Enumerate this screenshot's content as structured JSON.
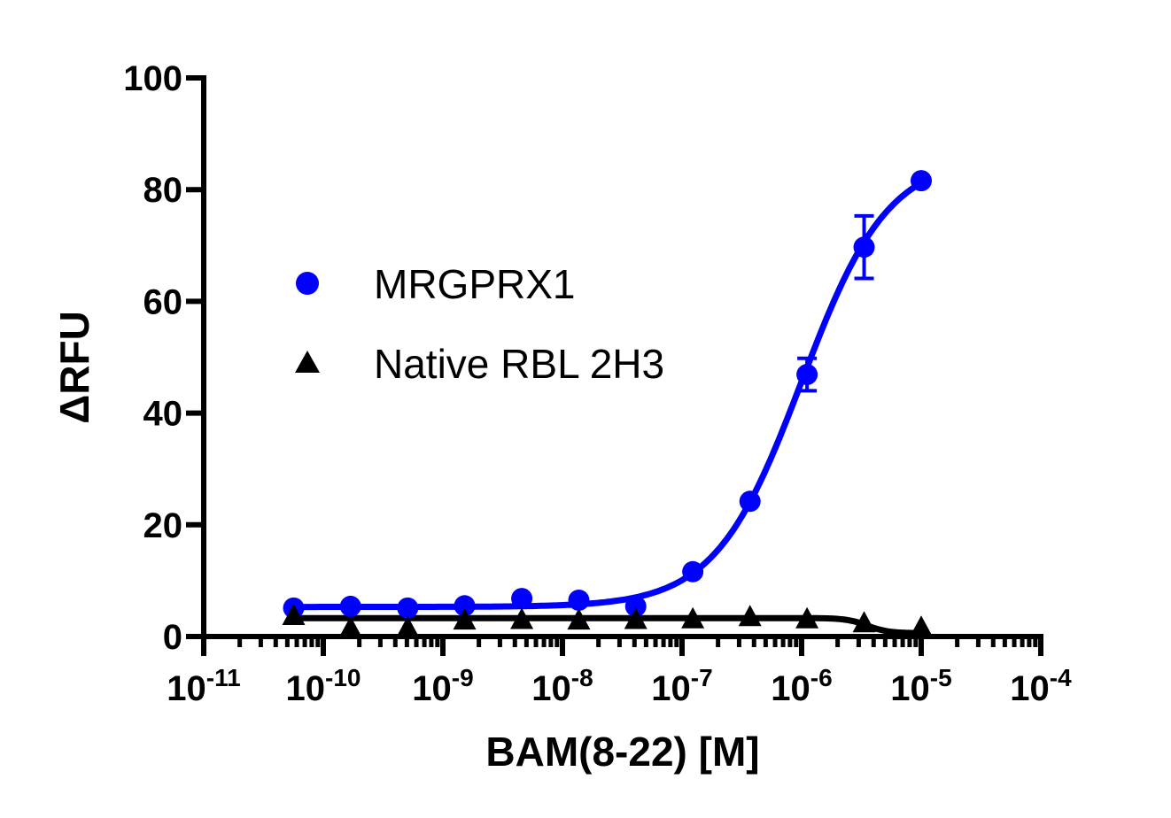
{
  "chart_data": {
    "type": "scatter",
    "title": "",
    "xlabel": "BAM(8-22) [M]",
    "ylabel": "ΔRFU",
    "x_scale": "log",
    "xlim": [
      1e-11,
      0.0001
    ],
    "ylim": [
      0,
      100
    ],
    "x_ticks": [
      {
        "base": "10",
        "exp": "-11",
        "value": 1e-11
      },
      {
        "base": "10",
        "exp": "-10",
        "value": 1e-10
      },
      {
        "base": "10",
        "exp": "-9",
        "value": 1e-09
      },
      {
        "base": "10",
        "exp": "-8",
        "value": 1e-08
      },
      {
        "base": "10",
        "exp": "-7",
        "value": 1e-07
      },
      {
        "base": "10",
        "exp": "-6",
        "value": 1e-06
      },
      {
        "base": "10",
        "exp": "-5",
        "value": 1e-05
      },
      {
        "base": "10",
        "exp": "-4",
        "value": 0.0001
      }
    ],
    "y_ticks": [
      "0",
      "20",
      "40",
      "60",
      "80",
      "100"
    ],
    "grid": false,
    "legend_position": "upper-left",
    "series": [
      {
        "name": "MRGPRX1",
        "marker": "circle",
        "color": "#0000ff",
        "x": [
          5.65e-11,
          1.69e-10,
          5.08e-10,
          1.52e-09,
          4.57e-09,
          1.37e-08,
          4.1e-08,
          1.23e-07,
          3.7e-07,
          1.11e-06,
          3.33e-06,
          1e-05
        ],
        "y": [
          5.1,
          5.4,
          5.1,
          5.5,
          6.8,
          6.5,
          5.4,
          11.6,
          24.2,
          46.9,
          69.7,
          81.6
        ],
        "error": [
          0,
          0,
          0,
          0,
          0,
          0,
          0,
          0,
          0,
          2.9,
          5.6,
          0
        ]
      },
      {
        "name": "Native RBL 2H3",
        "marker": "triangle",
        "color": "#000000",
        "x": [
          5.65e-11,
          1.69e-10,
          5.08e-10,
          1.52e-09,
          4.57e-09,
          1.37e-08,
          4.1e-08,
          1.23e-07,
          3.7e-07,
          1.11e-06,
          3.33e-06,
          1e-05
        ],
        "y": [
          3.8,
          1.6,
          1.6,
          3.0,
          3.1,
          3.0,
          3.1,
          3.2,
          3.6,
          3.2,
          2.5,
          1.7
        ],
        "error": [
          0,
          0,
          0,
          0,
          0,
          0,
          0,
          0,
          0,
          0,
          0,
          0
        ]
      }
    ]
  }
}
